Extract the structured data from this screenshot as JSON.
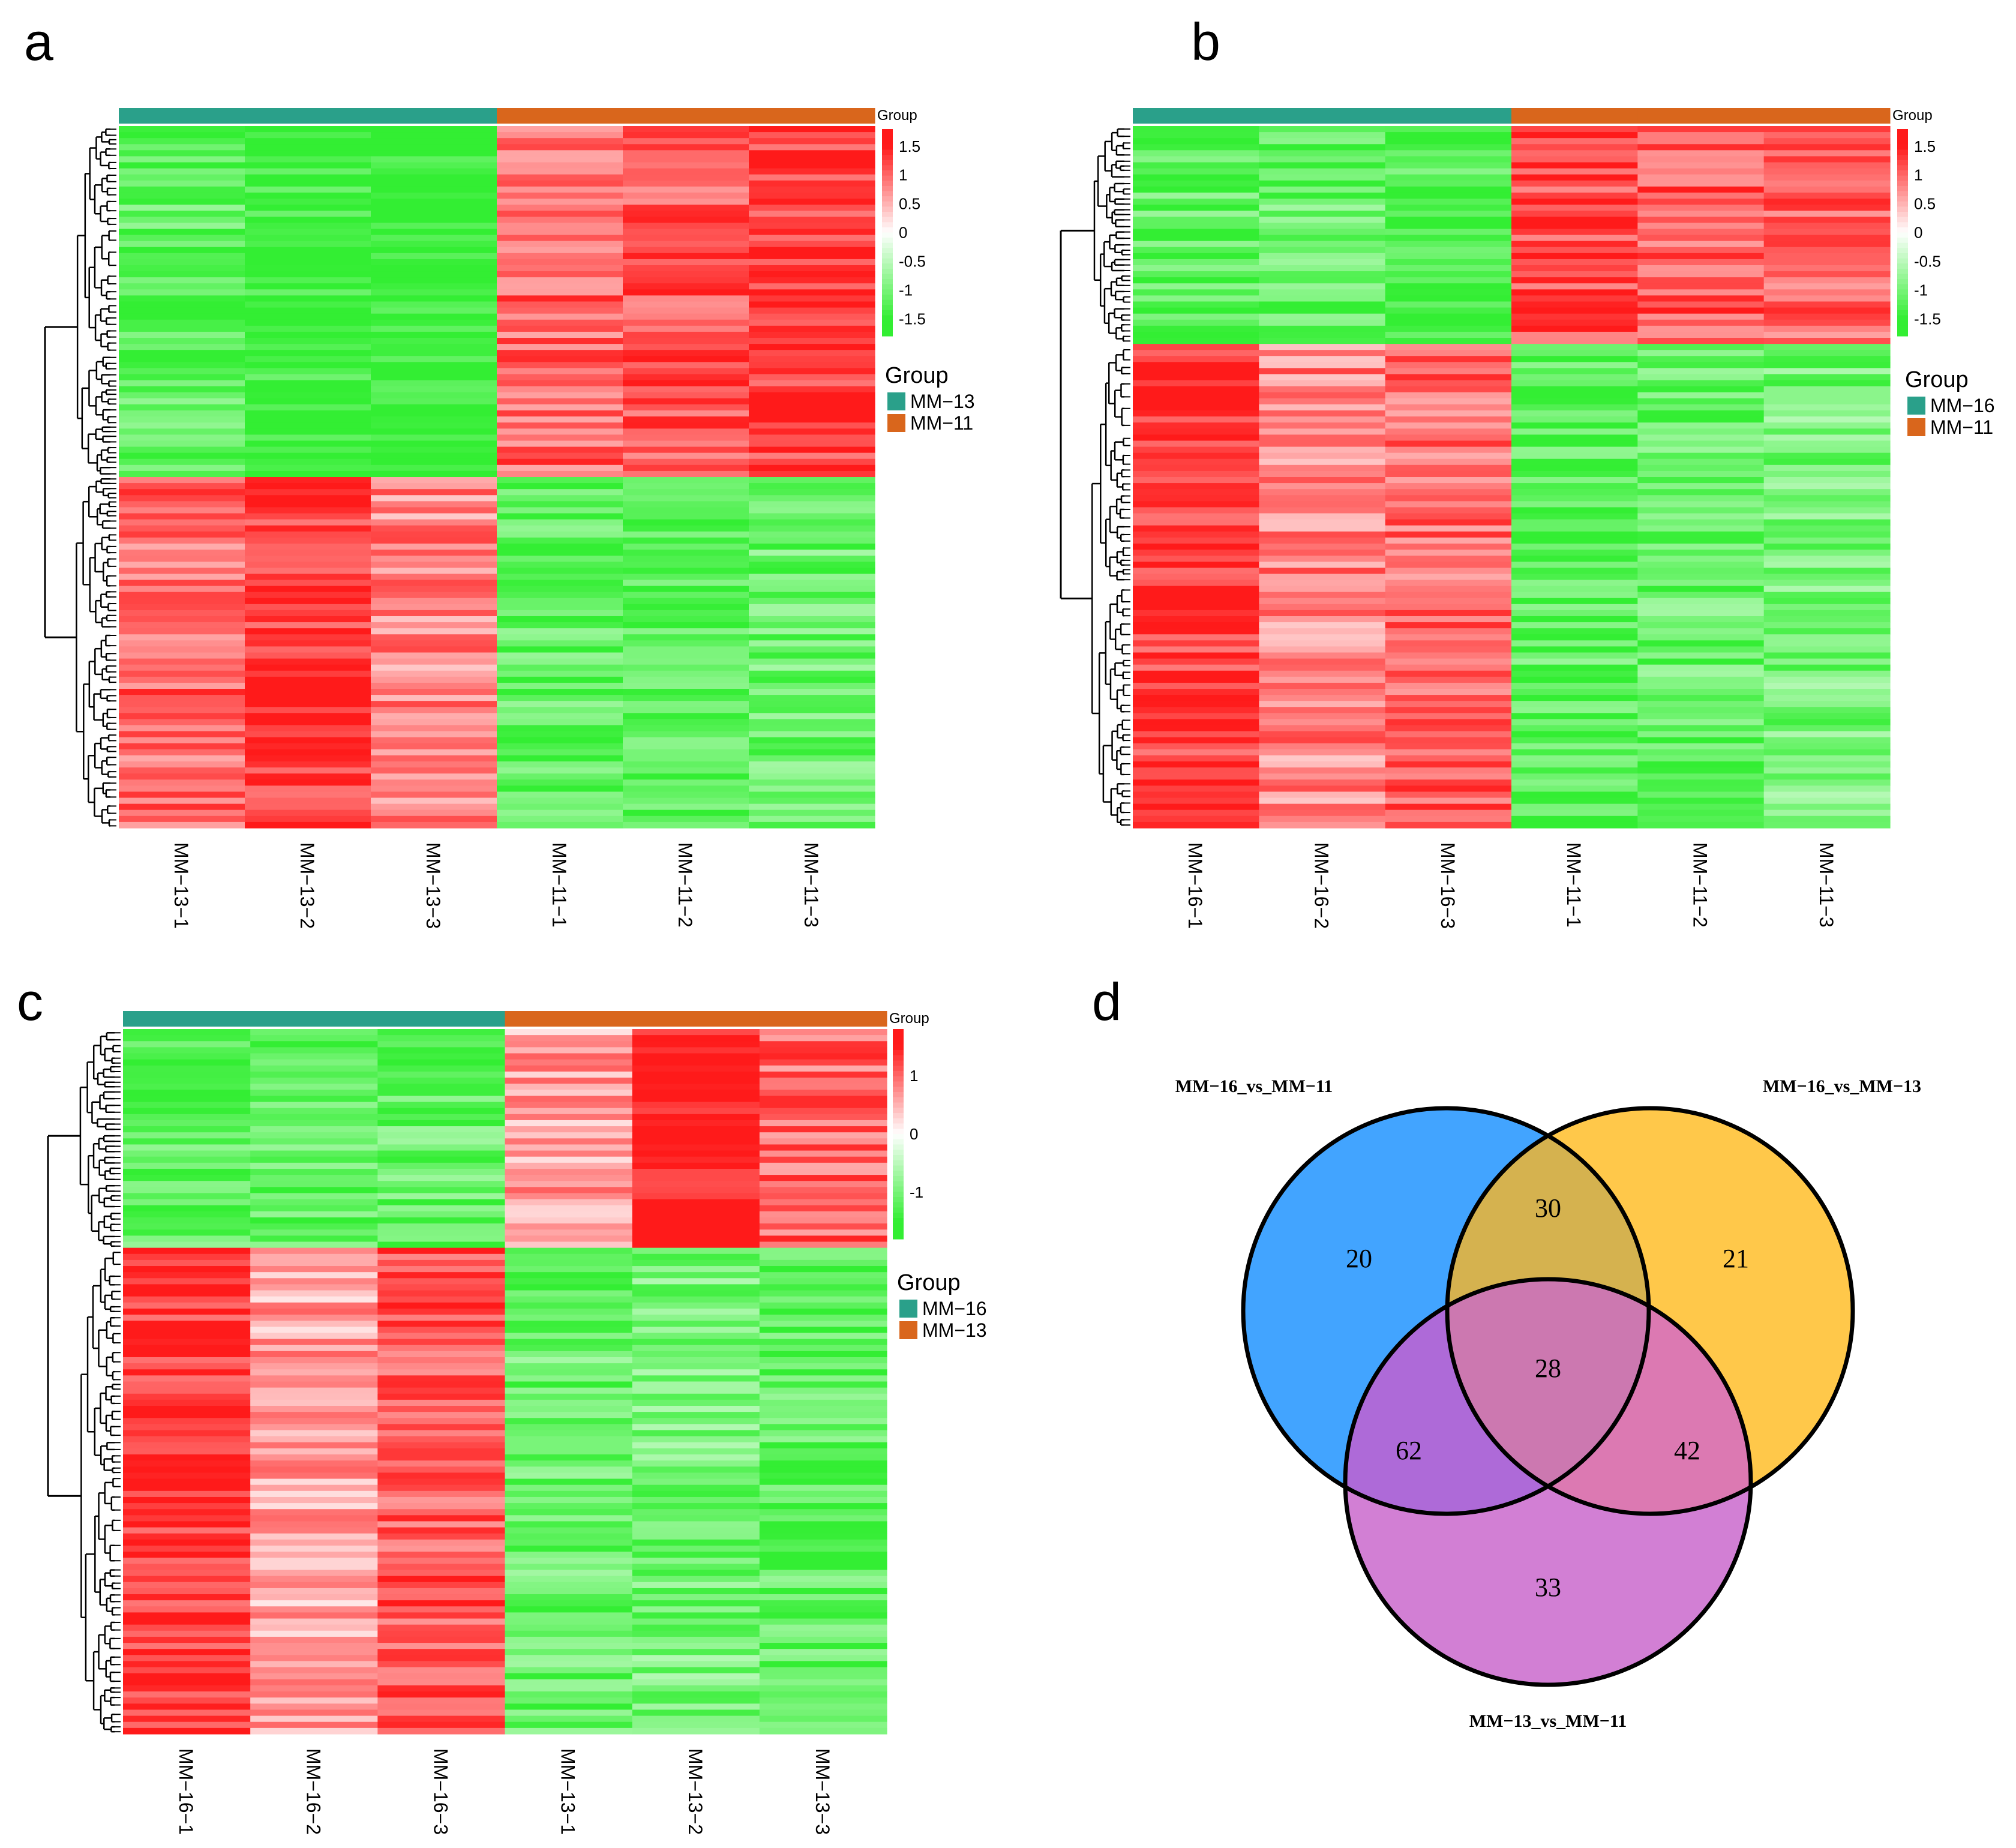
{
  "panels": [
    "a",
    "b",
    "c",
    "d"
  ],
  "colors": {
    "group_a": "#2aa08a",
    "group_b": "#d9661c",
    "high": "#ff1a1a",
    "mid": "#ffffff",
    "low": "#33ee33",
    "venn_blue": "#42a4ff",
    "venn_yellow": "#ffc84a",
    "venn_purple": "#d27fd4"
  },
  "chart_data": [
    {
      "type": "heatmap",
      "panel": "a",
      "group_bar_label": "Group",
      "legend_title": "Group",
      "groups": [
        {
          "name": "MM−13",
          "color": "#2aa08a"
        },
        {
          "name": "MM−11",
          "color": "#d9661c"
        }
      ],
      "columns": [
        "MM−13−1",
        "MM−13−2",
        "MM−13−3",
        "MM−11−1",
        "MM−11−2",
        "MM−11−3"
      ],
      "column_groups": [
        0,
        0,
        0,
        1,
        1,
        1
      ],
      "scale_ticks": [
        "1.5",
        "1",
        "0.5",
        "0",
        "-0.5",
        "-1",
        "-1.5"
      ],
      "scale_range": [
        -1.8,
        1.8
      ],
      "clusters": [
        {
          "rows": 58,
          "values": [
            -1.2,
            -1.5,
            -1.6,
            1.0,
            1.1,
            1.3
          ]
        },
        {
          "rows": 58,
          "values": [
            1.0,
            1.3,
            0.8,
            -1.2,
            -1.3,
            -1.1
          ]
        }
      ]
    },
    {
      "type": "heatmap",
      "panel": "b",
      "group_bar_label": "Group",
      "legend_title": "Group",
      "groups": [
        {
          "name": "MM−16",
          "color": "#2aa08a"
        },
        {
          "name": "MM−11",
          "color": "#d9661c"
        }
      ],
      "columns": [
        "MM−16−1",
        "MM−16−2",
        "MM−16−3",
        "MM−11−1",
        "MM−11−2",
        "MM−11−3"
      ],
      "column_groups": [
        0,
        0,
        0,
        1,
        1,
        1
      ],
      "scale_ticks": [
        "1.5",
        "1",
        "0.5",
        "0",
        "-0.5",
        "-1",
        "-1.5"
      ],
      "scale_range": [
        -1.8,
        1.8
      ],
      "clusters": [
        {
          "rows": 36,
          "values": [
            -1.2,
            -1.1,
            -1.3,
            1.2,
            1.1,
            1.0
          ]
        },
        {
          "rows": 80,
          "values": [
            1.3,
            0.8,
            1.0,
            -1.2,
            -1.1,
            -1.0
          ]
        }
      ]
    },
    {
      "type": "heatmap",
      "panel": "c",
      "group_bar_label": "Group",
      "legend_title": "Group",
      "groups": [
        {
          "name": "MM−16",
          "color": "#2aa08a"
        },
        {
          "name": "MM−13",
          "color": "#d9661c"
        }
      ],
      "columns": [
        "MM−16−1",
        "MM−16−2",
        "MM−16−3",
        "MM−13−1",
        "MM−13−2",
        "MM−13−3"
      ],
      "column_groups": [
        0,
        0,
        0,
        1,
        1,
        1
      ],
      "scale_ticks": [
        "1",
        "0",
        "-1"
      ],
      "scale_tick_values": [
        1,
        0,
        -1
      ],
      "scale_range": [
        -1.8,
        1.8
      ],
      "clusters": [
        {
          "rows": 36,
          "values": [
            -1.2,
            -1.2,
            -1.1,
            0.6,
            1.6,
            1.0
          ]
        },
        {
          "rows": 80,
          "values": [
            1.3,
            0.6,
            1.1,
            -1.1,
            -1.0,
            -1.2
          ]
        }
      ]
    },
    {
      "type": "venn",
      "panel": "d",
      "sets": [
        "MM−16_vs_MM−11",
        "MM−16_vs_MM−13",
        "MM−13_vs_MM−11"
      ],
      "regions": {
        "only_A": 20,
        "only_B": 21,
        "only_C": 33,
        "A_B": 30,
        "A_C": 62,
        "B_C": 42,
        "A_B_C": 28
      }
    }
  ]
}
